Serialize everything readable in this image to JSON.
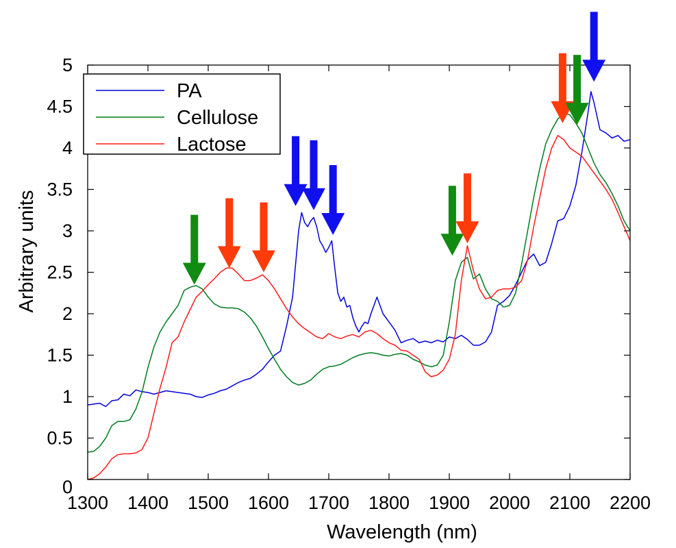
{
  "chart_data": {
    "type": "line",
    "title": "",
    "xlabel": "Wavelength (nm)",
    "ylabel": "Arbitrary units",
    "xlim": [
      1300,
      2200
    ],
    "ylim": [
      0,
      5
    ],
    "xticks": [
      1300,
      1400,
      1500,
      1600,
      1700,
      1800,
      1900,
      2000,
      2100,
      2200
    ],
    "yticks": [
      0,
      0.5,
      1,
      1.5,
      2,
      2.5,
      3,
      3.5,
      4,
      4.5,
      5
    ],
    "xtick_labels": [
      "1300",
      "1400",
      "1500",
      "1600",
      "1700",
      "1800",
      "1900",
      "2000",
      "2100",
      "2200"
    ],
    "ytick_labels": [
      "0",
      "0.5",
      "1",
      "1.5",
      "2",
      "2.5",
      "3",
      "3.5",
      "4",
      "4.5",
      "5"
    ],
    "grid": false,
    "legend_position": "top-left",
    "series": [
      {
        "name": "PA",
        "color": "#0000dd",
        "points": [
          [
            1300,
            0.9
          ],
          [
            1310,
            0.91
          ],
          [
            1320,
            0.92
          ],
          [
            1330,
            0.88
          ],
          [
            1340,
            0.95
          ],
          [
            1350,
            0.96
          ],
          [
            1360,
            1.03
          ],
          [
            1370,
            1.01
          ],
          [
            1380,
            1.08
          ],
          [
            1390,
            1.06
          ],
          [
            1400,
            1.05
          ],
          [
            1410,
            1.03
          ],
          [
            1420,
            1.05
          ],
          [
            1430,
            1.07
          ],
          [
            1440,
            1.06
          ],
          [
            1450,
            1.05
          ],
          [
            1460,
            1.04
          ],
          [
            1470,
            1.03
          ],
          [
            1480,
            1.0
          ],
          [
            1490,
            0.99
          ],
          [
            1500,
            1.02
          ],
          [
            1510,
            1.04
          ],
          [
            1520,
            1.07
          ],
          [
            1530,
            1.09
          ],
          [
            1540,
            1.13
          ],
          [
            1550,
            1.17
          ],
          [
            1560,
            1.2
          ],
          [
            1570,
            1.22
          ],
          [
            1580,
            1.27
          ],
          [
            1590,
            1.33
          ],
          [
            1600,
            1.42
          ],
          [
            1610,
            1.5
          ],
          [
            1620,
            1.55
          ],
          [
            1630,
            1.85
          ],
          [
            1640,
            2.2
          ],
          [
            1645,
            2.6
          ],
          [
            1650,
            3.0
          ],
          [
            1655,
            3.22
          ],
          [
            1660,
            3.1
          ],
          [
            1665,
            3.05
          ],
          [
            1670,
            3.12
          ],
          [
            1675,
            3.16
          ],
          [
            1680,
            3.05
          ],
          [
            1685,
            2.88
          ],
          [
            1690,
            2.82
          ],
          [
            1695,
            2.74
          ],
          [
            1700,
            2.8
          ],
          [
            1705,
            2.88
          ],
          [
            1710,
            2.55
          ],
          [
            1715,
            2.25
          ],
          [
            1720,
            2.15
          ],
          [
            1725,
            2.2
          ],
          [
            1730,
            2.08
          ],
          [
            1735,
            2.1
          ],
          [
            1740,
            1.95
          ],
          [
            1745,
            1.85
          ],
          [
            1750,
            1.78
          ],
          [
            1755,
            1.85
          ],
          [
            1760,
            1.9
          ],
          [
            1765,
            1.88
          ],
          [
            1770,
            2.0
          ],
          [
            1775,
            2.1
          ],
          [
            1780,
            2.2
          ],
          [
            1785,
            2.1
          ],
          [
            1790,
            2.0
          ],
          [
            1795,
            1.95
          ],
          [
            1800,
            1.9
          ],
          [
            1810,
            1.8
          ],
          [
            1820,
            1.65
          ],
          [
            1830,
            1.68
          ],
          [
            1840,
            1.7
          ],
          [
            1850,
            1.65
          ],
          [
            1860,
            1.67
          ],
          [
            1870,
            1.65
          ],
          [
            1880,
            1.68
          ],
          [
            1890,
            1.66
          ],
          [
            1900,
            1.72
          ],
          [
            1910,
            1.7
          ],
          [
            1920,
            1.74
          ],
          [
            1930,
            1.69
          ],
          [
            1940,
            1.62
          ],
          [
            1950,
            1.62
          ],
          [
            1960,
            1.66
          ],
          [
            1970,
            1.78
          ],
          [
            1980,
            2.1
          ],
          [
            1990,
            2.15
          ],
          [
            2000,
            2.22
          ],
          [
            2010,
            2.35
          ],
          [
            2020,
            2.5
          ],
          [
            2030,
            2.65
          ],
          [
            2040,
            2.72
          ],
          [
            2050,
            2.58
          ],
          [
            2060,
            2.62
          ],
          [
            2070,
            2.85
          ],
          [
            2080,
            3.12
          ],
          [
            2090,
            3.15
          ],
          [
            2100,
            3.3
          ],
          [
            2110,
            3.55
          ],
          [
            2120,
            3.95
          ],
          [
            2130,
            4.42
          ],
          [
            2135,
            4.68
          ],
          [
            2140,
            4.55
          ],
          [
            2150,
            4.22
          ],
          [
            2160,
            4.18
          ],
          [
            2170,
            4.12
          ],
          [
            2180,
            4.15
          ],
          [
            2190,
            4.08
          ],
          [
            2200,
            4.1
          ]
        ]
      },
      {
        "name": "Cellulose",
        "color": "#007a1f",
        "points": [
          [
            1300,
            0.33
          ],
          [
            1310,
            0.34
          ],
          [
            1320,
            0.4
          ],
          [
            1330,
            0.5
          ],
          [
            1340,
            0.65
          ],
          [
            1350,
            0.7
          ],
          [
            1360,
            0.7
          ],
          [
            1370,
            0.72
          ],
          [
            1380,
            0.85
          ],
          [
            1390,
            1.05
          ],
          [
            1400,
            1.35
          ],
          [
            1410,
            1.6
          ],
          [
            1420,
            1.78
          ],
          [
            1430,
            1.9
          ],
          [
            1440,
            2.0
          ],
          [
            1450,
            2.1
          ],
          [
            1460,
            2.28
          ],
          [
            1470,
            2.32
          ],
          [
            1480,
            2.34
          ],
          [
            1490,
            2.3
          ],
          [
            1500,
            2.2
          ],
          [
            1510,
            2.12
          ],
          [
            1520,
            2.08
          ],
          [
            1530,
            2.07
          ],
          [
            1540,
            2.07
          ],
          [
            1550,
            2.06
          ],
          [
            1560,
            2.02
          ],
          [
            1570,
            1.95
          ],
          [
            1580,
            1.85
          ],
          [
            1590,
            1.72
          ],
          [
            1600,
            1.58
          ],
          [
            1610,
            1.45
          ],
          [
            1620,
            1.33
          ],
          [
            1630,
            1.24
          ],
          [
            1640,
            1.17
          ],
          [
            1650,
            1.14
          ],
          [
            1660,
            1.16
          ],
          [
            1670,
            1.2
          ],
          [
            1680,
            1.27
          ],
          [
            1690,
            1.33
          ],
          [
            1700,
            1.36
          ],
          [
            1710,
            1.37
          ],
          [
            1720,
            1.39
          ],
          [
            1730,
            1.43
          ],
          [
            1740,
            1.47
          ],
          [
            1750,
            1.5
          ],
          [
            1760,
            1.52
          ],
          [
            1770,
            1.53
          ],
          [
            1780,
            1.52
          ],
          [
            1790,
            1.5
          ],
          [
            1800,
            1.49
          ],
          [
            1810,
            1.51
          ],
          [
            1820,
            1.52
          ],
          [
            1830,
            1.5
          ],
          [
            1840,
            1.45
          ],
          [
            1850,
            1.42
          ],
          [
            1860,
            1.38
          ],
          [
            1870,
            1.36
          ],
          [
            1880,
            1.38
          ],
          [
            1890,
            1.5
          ],
          [
            1900,
            1.9
          ],
          [
            1910,
            2.4
          ],
          [
            1920,
            2.62
          ],
          [
            1930,
            2.68
          ],
          [
            1940,
            2.42
          ],
          [
            1950,
            2.48
          ],
          [
            1960,
            2.3
          ],
          [
            1970,
            2.18
          ],
          [
            1980,
            2.15
          ],
          [
            1990,
            2.08
          ],
          [
            2000,
            2.1
          ],
          [
            2010,
            2.25
          ],
          [
            2020,
            2.6
          ],
          [
            2030,
            3.0
          ],
          [
            2040,
            3.4
          ],
          [
            2050,
            3.75
          ],
          [
            2060,
            4.05
          ],
          [
            2070,
            4.22
          ],
          [
            2080,
            4.35
          ],
          [
            2090,
            4.42
          ],
          [
            2100,
            4.4
          ],
          [
            2110,
            4.3
          ],
          [
            2120,
            4.18
          ],
          [
            2130,
            4.0
          ],
          [
            2140,
            3.82
          ],
          [
            2150,
            3.68
          ],
          [
            2160,
            3.58
          ],
          [
            2170,
            3.45
          ],
          [
            2180,
            3.3
          ],
          [
            2190,
            3.12
          ],
          [
            2200,
            3.0
          ]
        ]
      },
      {
        "name": "Lactose",
        "color": "#ff1a1a",
        "points": [
          [
            1300,
            0.0
          ],
          [
            1310,
            0.02
          ],
          [
            1320,
            0.07
          ],
          [
            1330,
            0.15
          ],
          [
            1340,
            0.25
          ],
          [
            1350,
            0.3
          ],
          [
            1360,
            0.31
          ],
          [
            1370,
            0.31
          ],
          [
            1380,
            0.32
          ],
          [
            1390,
            0.36
          ],
          [
            1400,
            0.5
          ],
          [
            1410,
            0.8
          ],
          [
            1420,
            1.1
          ],
          [
            1430,
            1.35
          ],
          [
            1440,
            1.65
          ],
          [
            1450,
            1.72
          ],
          [
            1460,
            1.9
          ],
          [
            1470,
            2.05
          ],
          [
            1480,
            2.2
          ],
          [
            1490,
            2.27
          ],
          [
            1500,
            2.35
          ],
          [
            1510,
            2.42
          ],
          [
            1520,
            2.5
          ],
          [
            1530,
            2.55
          ],
          [
            1540,
            2.55
          ],
          [
            1550,
            2.48
          ],
          [
            1560,
            2.4
          ],
          [
            1570,
            2.4
          ],
          [
            1580,
            2.43
          ],
          [
            1590,
            2.47
          ],
          [
            1600,
            2.4
          ],
          [
            1610,
            2.3
          ],
          [
            1620,
            2.18
          ],
          [
            1630,
            2.06
          ],
          [
            1640,
            1.96
          ],
          [
            1650,
            1.88
          ],
          [
            1660,
            1.82
          ],
          [
            1670,
            1.77
          ],
          [
            1680,
            1.72
          ],
          [
            1690,
            1.7
          ],
          [
            1700,
            1.76
          ],
          [
            1710,
            1.72
          ],
          [
            1720,
            1.7
          ],
          [
            1730,
            1.73
          ],
          [
            1740,
            1.75
          ],
          [
            1750,
            1.72
          ],
          [
            1760,
            1.78
          ],
          [
            1770,
            1.8
          ],
          [
            1780,
            1.76
          ],
          [
            1790,
            1.7
          ],
          [
            1800,
            1.65
          ],
          [
            1810,
            1.62
          ],
          [
            1820,
            1.56
          ],
          [
            1830,
            1.55
          ],
          [
            1840,
            1.5
          ],
          [
            1850,
            1.45
          ],
          [
            1860,
            1.3
          ],
          [
            1870,
            1.24
          ],
          [
            1880,
            1.26
          ],
          [
            1890,
            1.32
          ],
          [
            1900,
            1.45
          ],
          [
            1910,
            1.75
          ],
          [
            1920,
            2.4
          ],
          [
            1930,
            2.82
          ],
          [
            1940,
            2.52
          ],
          [
            1950,
            2.3
          ],
          [
            1960,
            2.18
          ],
          [
            1970,
            2.2
          ],
          [
            1980,
            2.28
          ],
          [
            1990,
            2.3
          ],
          [
            2000,
            2.3
          ],
          [
            2010,
            2.32
          ],
          [
            2020,
            2.4
          ],
          [
            2030,
            2.65
          ],
          [
            2040,
            3.05
          ],
          [
            2050,
            3.4
          ],
          [
            2060,
            3.75
          ],
          [
            2070,
            4.0
          ],
          [
            2080,
            4.15
          ],
          [
            2090,
            4.1
          ],
          [
            2100,
            4.0
          ],
          [
            2110,
            3.95
          ],
          [
            2120,
            3.9
          ],
          [
            2130,
            3.8
          ],
          [
            2140,
            3.7
          ],
          [
            2150,
            3.6
          ],
          [
            2160,
            3.5
          ],
          [
            2170,
            3.38
          ],
          [
            2180,
            3.22
          ],
          [
            2190,
            3.05
          ],
          [
            2200,
            2.88
          ]
        ]
      }
    ],
    "annotations": [
      {
        "type": "arrow",
        "color": "#118b11",
        "x": 1477,
        "y": 2.35
      },
      {
        "type": "arrow",
        "color": "#ff3b0a",
        "x": 1535,
        "y": 2.55
      },
      {
        "type": "arrow",
        "color": "#ff3b0a",
        "x": 1592,
        "y": 2.5
      },
      {
        "type": "arrow",
        "color": "#1010ee",
        "x": 1645,
        "y": 3.3
      },
      {
        "type": "arrow",
        "color": "#1010ee",
        "x": 1675,
        "y": 3.25
      },
      {
        "type": "arrow",
        "color": "#1010ee",
        "x": 1707,
        "y": 2.95
      },
      {
        "type": "arrow",
        "color": "#118b11",
        "x": 1905,
        "y": 2.7
      },
      {
        "type": "arrow",
        "color": "#ff3b0a",
        "x": 1930,
        "y": 2.85
      },
      {
        "type": "arrow",
        "color": "#ff3b0a",
        "x": 2088,
        "y": 4.3
      },
      {
        "type": "arrow",
        "color": "#118b11",
        "x": 2112,
        "y": 4.28
      },
      {
        "type": "arrow",
        "color": "#1010ee",
        "x": 2140,
        "y": 4.8
      }
    ]
  }
}
